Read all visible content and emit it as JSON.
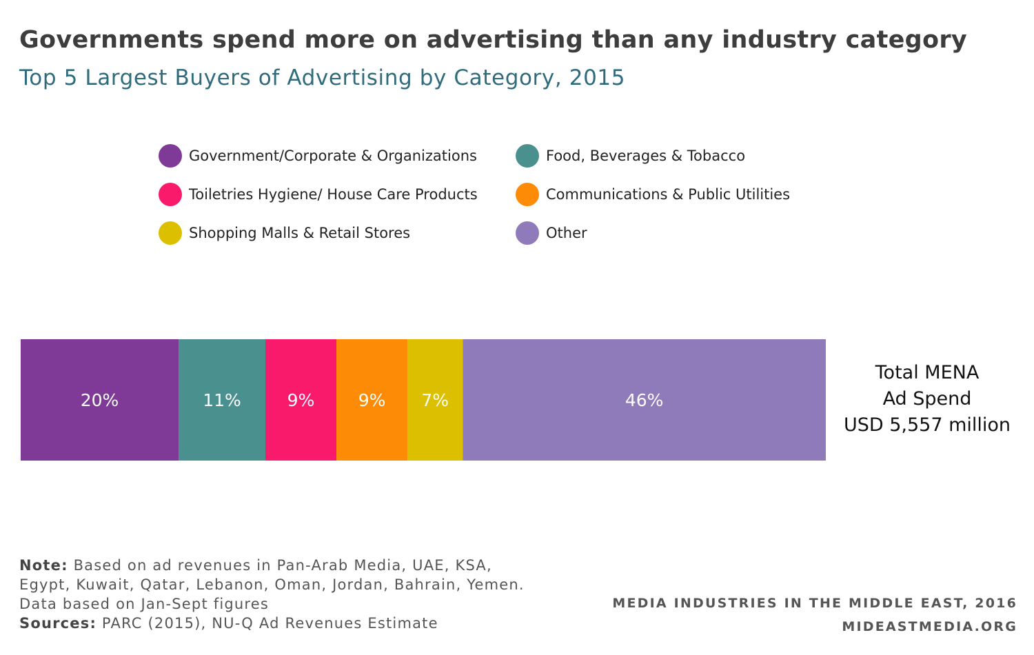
{
  "title": "Governments spend more on advertising than any industry category",
  "subtitle": "Top 5 Largest Buyers of Advertising by Category, 2015",
  "chart_data": {
    "type": "bar",
    "orientation": "horizontal-stacked",
    "unit": "percent",
    "categories": [
      "Government/Corporate & Organizations",
      "Food, Beverages & Tobacco",
      "Toiletries Hygiene/ House Care Products",
      "Communications & Public Utilities",
      "Shopping Malls & Retail Stores",
      "Other"
    ],
    "values": [
      20,
      11,
      9,
      9,
      7,
      46
    ],
    "labels": [
      "20%",
      "11%",
      "9%",
      "9%",
      "7%",
      "46%"
    ],
    "colors": [
      "#7e3a96",
      "#4a908f",
      "#f91a6b",
      "#fd8b06",
      "#dcc000",
      "#8f7aba"
    ],
    "legend_position": "top",
    "grid": false,
    "total_label": [
      "Total MENA",
      "Ad Spend",
      "USD 5,557 million"
    ]
  },
  "note": {
    "note_label": "Note:",
    "note_text": " Based on ad revenues in Pan-Arab Media, UAE, KSA, Egypt, Kuwait, Qatar, Lebanon, Oman, Jordan, Bahrain, Yemen. Data based on Jan-Sept figures",
    "sources_label": "Sources:",
    "sources_text": " PARC (2015), NU-Q Ad Revenues Estimate"
  },
  "credit": {
    "line1": "MEDIA INDUSTRIES IN THE MIDDLE EAST, 2016",
    "line2": "MIDEASTMEDIA.ORG"
  }
}
